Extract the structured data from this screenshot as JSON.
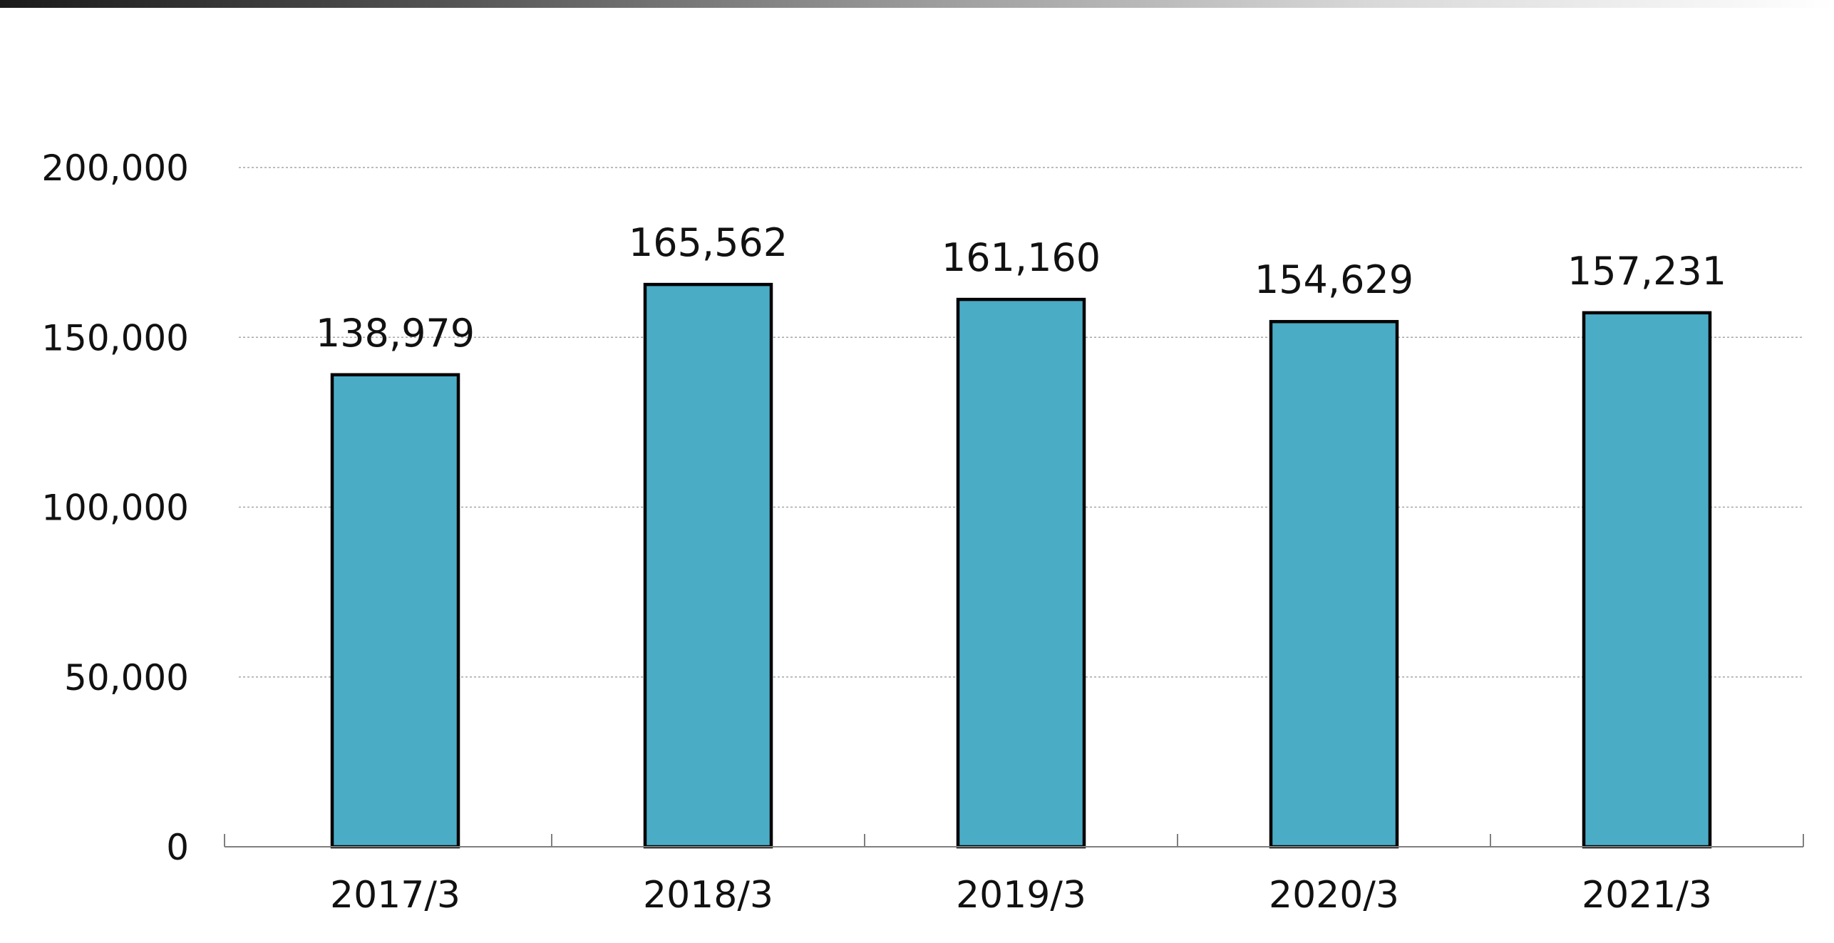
{
  "chart_data": {
    "type": "bar",
    "categories": [
      "2017/3",
      "2018/3",
      "2019/3",
      "2020/3",
      "2021/3"
    ],
    "values": [
      138979,
      165562,
      161160,
      154629,
      157231
    ],
    "data_labels": [
      "138,979",
      "165,562",
      "161,160",
      "154,629",
      "157,231"
    ],
    "title": "",
    "xlabel": "",
    "ylabel": "",
    "ylim": [
      0,
      200000
    ],
    "yticks": [
      0,
      50000,
      100000,
      150000,
      200000
    ],
    "ytick_labels": [
      "0",
      "50,000",
      "100,000",
      "150,000",
      "200,000"
    ],
    "grid": true,
    "legend": "none",
    "bar_color": "#4BACC6",
    "bar_edge_color": "#000000",
    "grid_color": "#A6A6A6"
  }
}
